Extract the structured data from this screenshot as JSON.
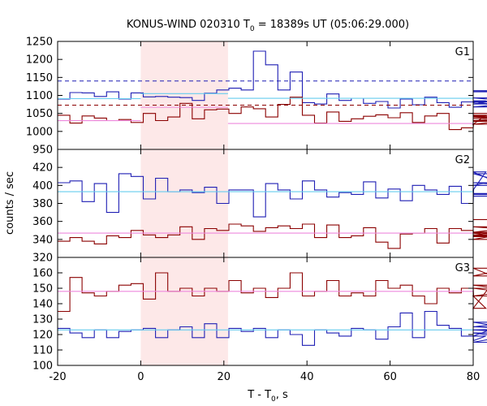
{
  "chart_data": {
    "type": "line",
    "title_parts": [
      "KONUS-WIND 020310 T",
      "0",
      " = 18389s UT (05:06:29.000)"
    ],
    "xlabel_parts": [
      "T - T",
      "0",
      ", s"
    ],
    "ylabel": "counts / sec",
    "x_range": [
      -20,
      80
    ],
    "x_ticks": [
      -20,
      0,
      20,
      40,
      60,
      80
    ],
    "x_tick_labels": [
      "-20",
      "0",
      "20",
      "40",
      "60",
      "80"
    ],
    "highlight_interval": [
      0,
      21
    ],
    "colors": {
      "series_a": "#1f1fb4",
      "series_b": "#8b0000",
      "fit_a": "#66ccee",
      "fit_b": "#ee88dd",
      "highlight": "#fde8e8"
    },
    "bin_width": 2.944,
    "bin_start": -20,
    "panels": [
      {
        "label": "G1",
        "y_range": [
          950,
          1250
        ],
        "y_ticks": [
          950,
          1000,
          1050,
          1100,
          1150,
          1200,
          1250
        ],
        "series": [
          {
            "color_key": "series_a",
            "values": [
              1090,
              1108,
              1107,
              1097,
              1110,
              1090,
              1107,
              1096,
              1097,
              1095,
              1094,
              1086,
              1106,
              1115,
              1120,
              1115,
              1223,
              1185,
              1115,
              1165,
              1080,
              1076,
              1104,
              1086,
              1092,
              1078,
              1083,
              1065,
              1090,
              1074,
              1095,
              1080,
              1067,
              1082,
              1080,
              1085,
              1068,
              1076,
              1082,
              1093,
              1076,
              1112,
              1113,
              1110
            ]
          },
          {
            "color_key": "series_b",
            "values": [
              1045,
              1023,
              1043,
              1037,
              1030,
              1033,
              1025,
              1050,
              1030,
              1040,
              1078,
              1035,
              1060,
              1062,
              1050,
              1068,
              1063,
              1040,
              1075,
              1095,
              1045,
              1023,
              1054,
              1028,
              1035,
              1042,
              1046,
              1038,
              1052,
              1025,
              1043,
              1050,
              1005,
              1010,
              1020,
              1045,
              1030,
              1036,
              1040,
              1030,
              1028,
              1043,
              1020,
              1050
            ]
          }
        ],
        "fits": [
          {
            "color_key": "fit_a",
            "segments": [
              [
                -20,
                0,
                1091
              ],
              [
                0,
                21,
                1105
              ],
              [
                21,
                80,
                1092
              ]
            ]
          },
          {
            "color_key": "fit_b",
            "segments": [
              [
                -20,
                0,
                1030
              ],
              [
                0,
                21,
                1067
              ],
              [
                21,
                80,
                1022
              ]
            ]
          }
        ],
        "thresholds": [
          {
            "color_key": "series_a",
            "value": 1140
          },
          {
            "color_key": "series_b",
            "value": 1073
          }
        ]
      },
      {
        "label": "G2",
        "y_range": [
          320,
          440
        ],
        "y_ticks": [
          320,
          340,
          360,
          380,
          400,
          420
        ],
        "series": [
          {
            "color_key": "series_a",
            "values": [
              403,
              405,
              382,
              402,
              370,
              413,
              410,
              385,
              408,
              393,
              395,
              392,
              398,
              380,
              395,
              395,
              365,
              402,
              395,
              385,
              405,
              395,
              387,
              392,
              390,
              404,
              386,
              396,
              383,
              400,
              395,
              390,
              399,
              380,
              395,
              415,
              403,
              400,
              400,
              413,
              391,
              388,
              390,
              391
            ]
          },
          {
            "color_key": "series_b",
            "values": [
              338,
              342,
              338,
              335,
              344,
              342,
              350,
              345,
              342,
              345,
              354,
              340,
              352,
              350,
              357,
              355,
              349,
              353,
              355,
              352,
              357,
              342,
              356,
              342,
              344,
              353,
              337,
              330,
              346,
              347,
              352,
              336,
              352,
              350,
              347,
              345,
              343,
              344,
              348,
              340,
              354,
              347,
              348,
              362
            ]
          }
        ],
        "fits": [
          {
            "color_key": "fit_a",
            "segments": [
              [
                -20,
                80,
                393
              ]
            ]
          },
          {
            "color_key": "fit_b",
            "segments": [
              [
                -20,
                80,
                347
              ]
            ]
          }
        ],
        "thresholds": []
      },
      {
        "label": "G3",
        "y_range": [
          100,
          170
        ],
        "y_ticks": [
          100,
          110,
          120,
          130,
          140,
          150,
          160
        ],
        "series": [
          {
            "color_key": "series_a",
            "values": [
              124,
              121,
              118,
              123,
              118,
              122,
              123,
              124,
              118,
              123,
              125,
              118,
              127,
              118,
              124,
              122,
              124,
              118,
              123,
              120,
              113,
              123,
              121,
              119,
              124,
              123,
              117,
              125,
              134,
              118,
              135,
              126,
              124,
              119,
              116,
              119,
              125,
              128,
              123,
              121,
              115,
              125,
              123,
              125
            ]
          },
          {
            "color_key": "series_b",
            "values": [
              135,
              157,
              147,
              145,
              148,
              152,
              153,
              143,
              160,
              148,
              150,
              145,
              150,
              148,
              155,
              147,
              150,
              144,
              150,
              160,
              145,
              148,
              155,
              145,
              147,
              145,
              155,
              150,
              152,
              145,
              140,
              150,
              147,
              150,
              145,
              137,
              158,
              163,
              150,
              145,
              145,
              152,
              145,
              145
            ]
          }
        ],
        "fits": [
          {
            "color_key": "fit_a",
            "segments": [
              [
                -20,
                80,
                123
              ]
            ]
          },
          {
            "color_key": "fit_b",
            "segments": [
              [
                -20,
                80,
                148
              ]
            ]
          }
        ],
        "thresholds": []
      }
    ]
  }
}
